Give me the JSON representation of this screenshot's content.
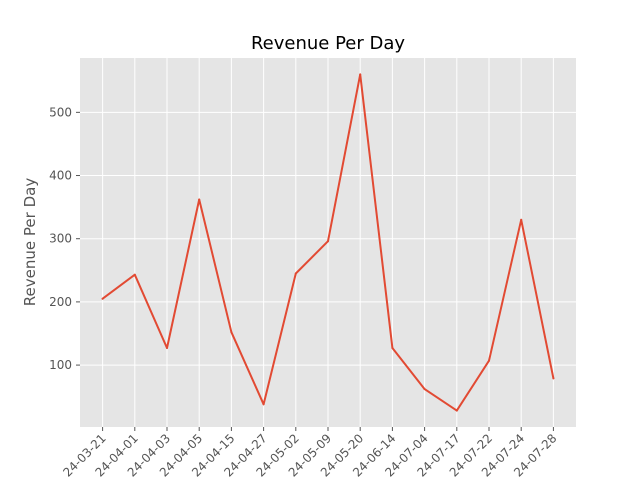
{
  "chart_data": {
    "type": "line",
    "title": "Revenue Per Day",
    "xlabel": "",
    "ylabel": "Revenue Per Day",
    "categories": [
      "2024-03-21",
      "2024-04-01",
      "2024-04-03",
      "2024-04-05",
      "2024-04-15",
      "2024-04-27",
      "2024-05-02",
      "2024-05-09",
      "2024-05-20",
      "2024-06-14",
      "2024-07-04",
      "2024-07-17",
      "2024-07-22",
      "2024-07-24",
      "2024-07-28"
    ],
    "tick_labels": [
      "24-03-21",
      "24-04-01",
      "24-04-03",
      "24-04-05",
      "24-04-15",
      "24-04-27",
      "24-05-02",
      "24-05-09",
      "24-05-20",
      "24-06-14",
      "24-07-04",
      "24-07-17",
      "24-07-22",
      "24-07-24",
      "24-07-28"
    ],
    "series": [
      {
        "values": [
          205,
          243,
          127,
          362,
          152,
          38,
          245,
          296,
          560,
          127,
          62,
          28,
          107,
          330,
          79
        ]
      }
    ],
    "ylim": [
      2,
      586
    ],
    "yticks": [
      100,
      200,
      300,
      400,
      500
    ],
    "grid": true,
    "colors": {
      "background": "#e5e5e5",
      "line": "#e24a33",
      "grid": "#ffffff"
    }
  }
}
